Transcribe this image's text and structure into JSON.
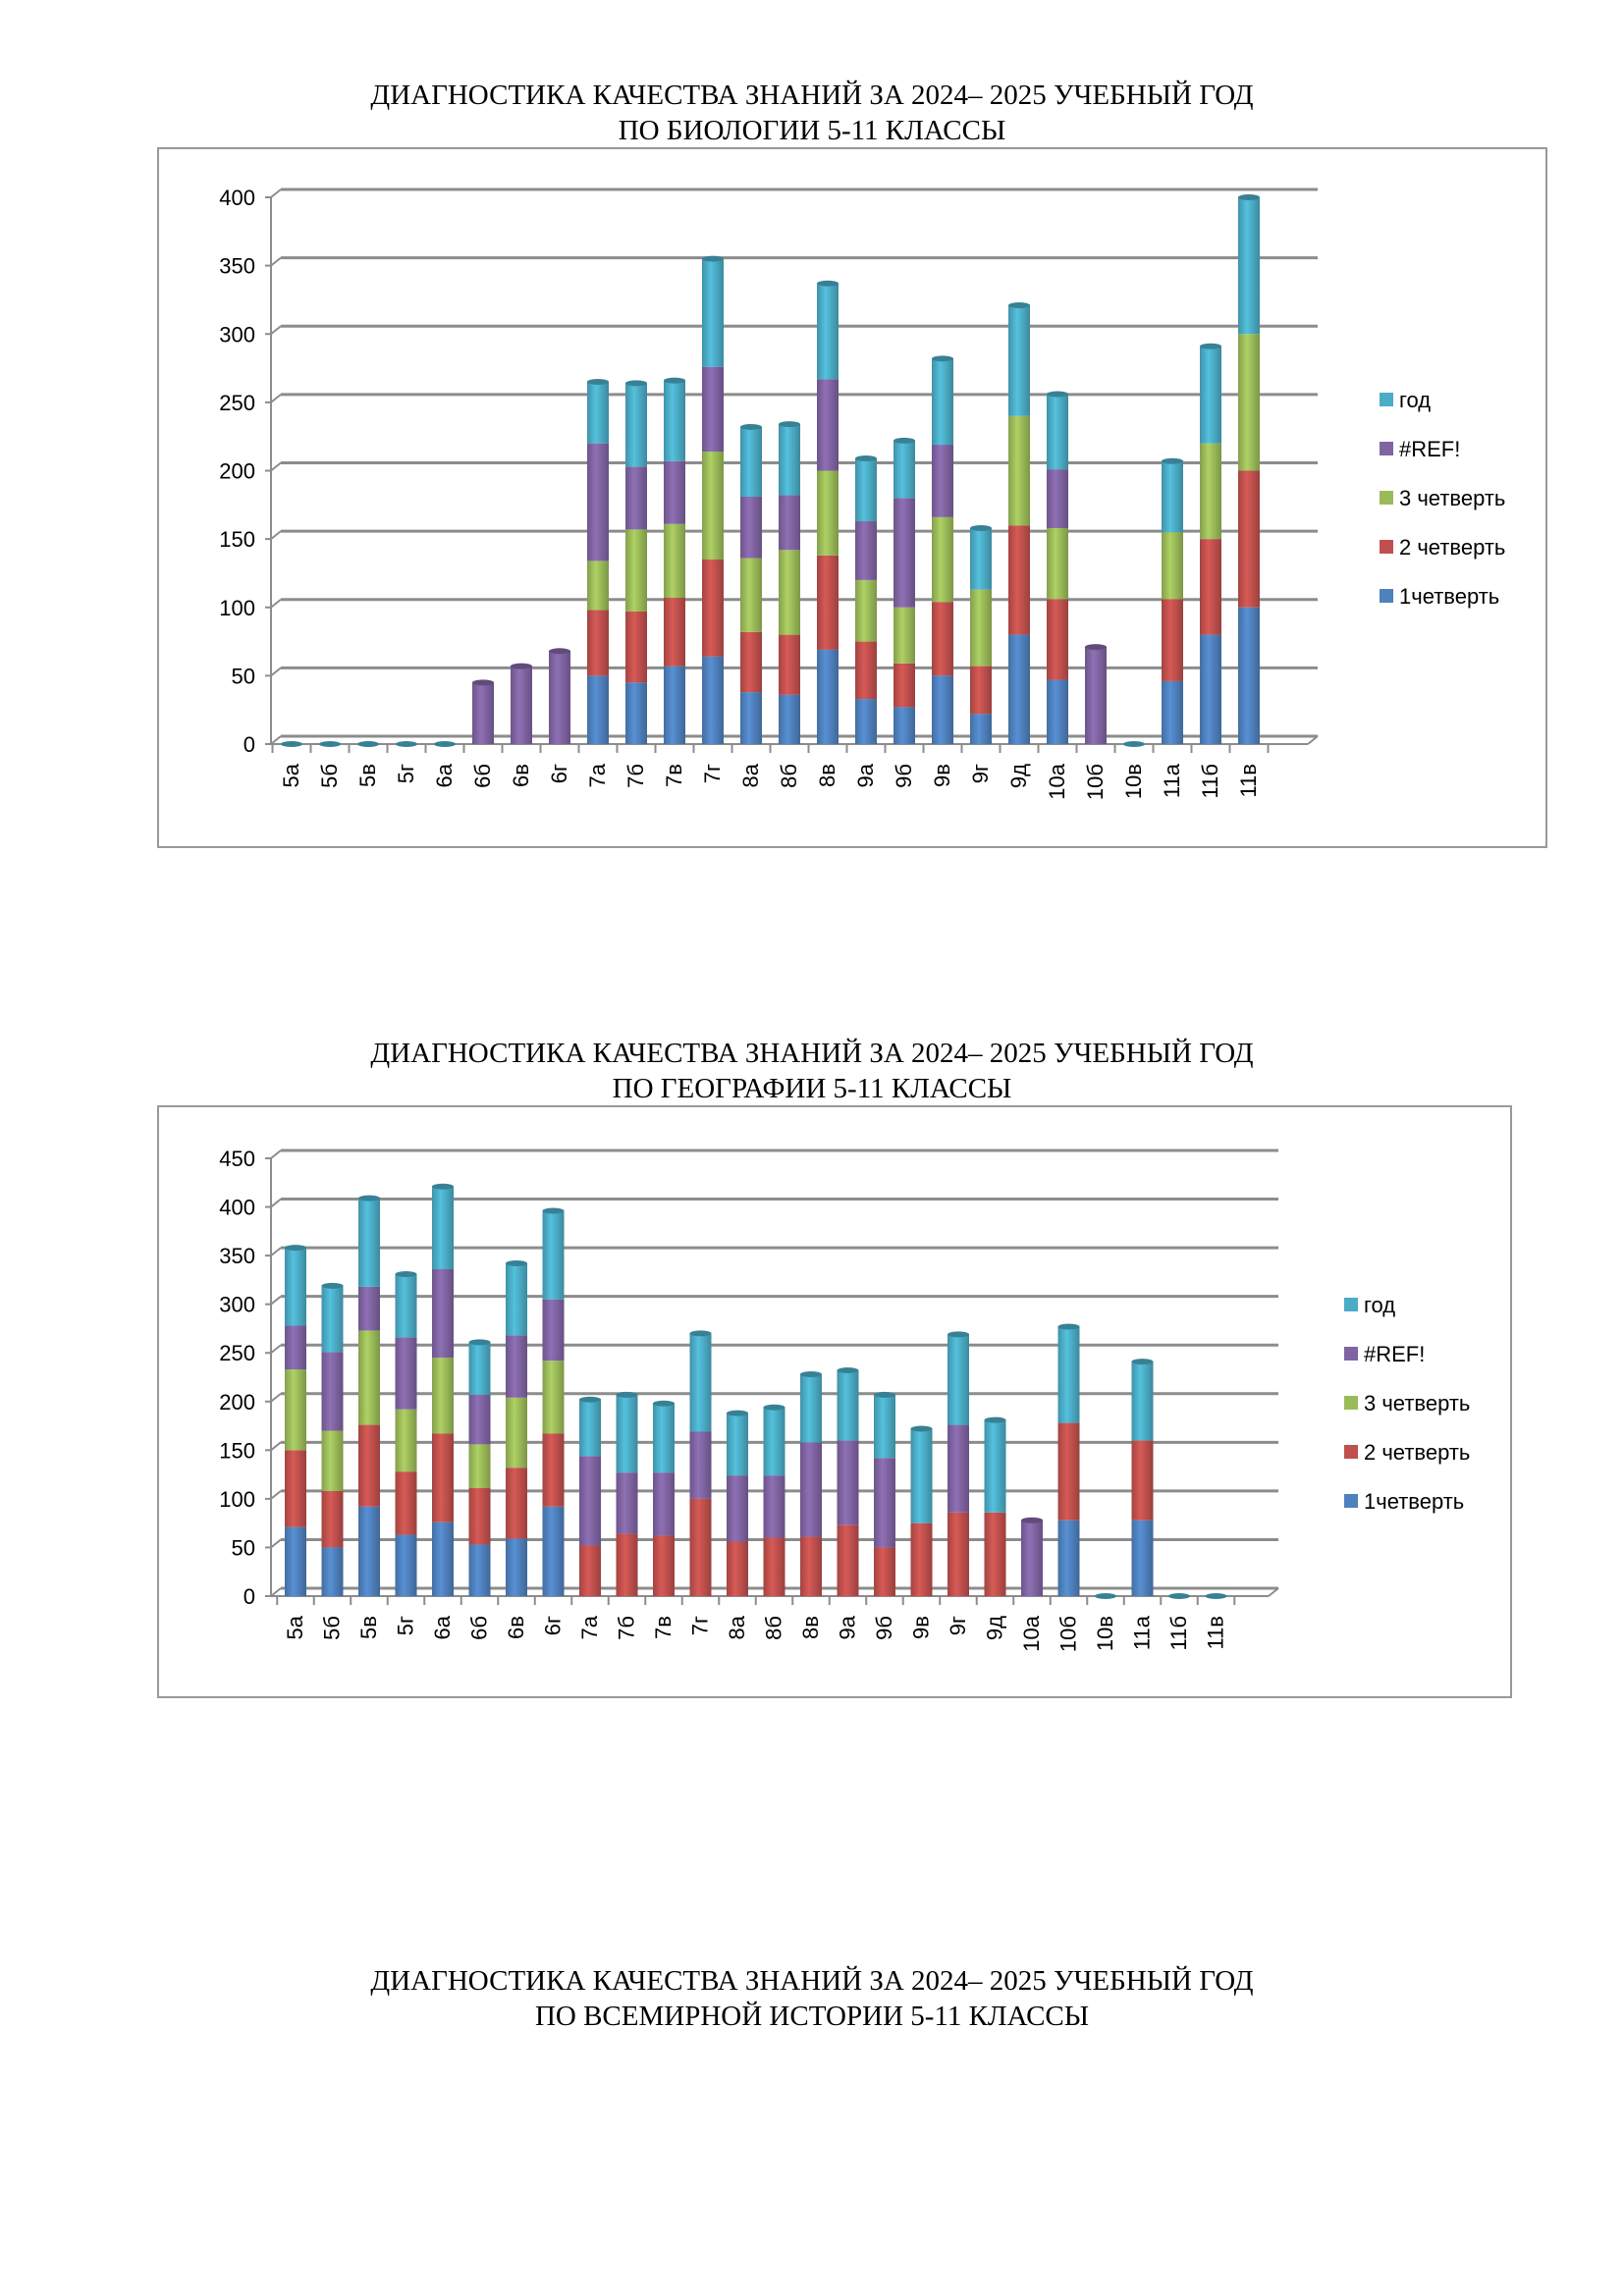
{
  "titles": [
    {
      "line1": "ДИАГНОСТИКА КАЧЕСТВА ЗНАНИЙ ЗА 2024– 2025 УЧЕБНЫЙ ГОД",
      "line2": "ПО БИОЛОГИИ  5-11 КЛАССЫ"
    },
    {
      "line1": "ДИАГНОСТИКА КАЧЕСТВА ЗНАНИЙ ЗА 2024– 2025 УЧЕБНЫЙ ГОД",
      "line2": "ПО ГЕОГРАФИИ  5-11 КЛАССЫ"
    },
    {
      "line1": "ДИАГНОСТИКА КАЧЕСТВА ЗНАНИЙ ЗА 2024– 2025 УЧЕБНЫЙ ГОД",
      "line2": "ПО ВСЕМИРНОЙ ИСТОРИИ  5-11 КЛАССЫ"
    }
  ],
  "chart_data": [
    {
      "type": "bar",
      "stacked": true,
      "title": "ДИАГНОСТИКА КАЧЕСТВА ЗНАНИЙ ЗА 2024– 2025 УЧЕБНЫЙ ГОД ПО БИОЛОГИИ 5-11 КЛАССЫ",
      "xlabel": "",
      "ylabel": "",
      "ylim": [
        0,
        400
      ],
      "yticks": [
        0,
        50,
        100,
        150,
        200,
        250,
        300,
        350,
        400
      ],
      "grid": true,
      "legend": "right",
      "categories": [
        "5а",
        "5б",
        "5в",
        "5г",
        "6а",
        "6б",
        "6в",
        "6г",
        "7а",
        "7б",
        "7в",
        "7г",
        "8а",
        "8б",
        "8в",
        "9а",
        "9б",
        "9в",
        "9г",
        "9д",
        "10а",
        "10б",
        "10в",
        "11а",
        "11б",
        "11в"
      ],
      "series": [
        {
          "name": "1четверть",
          "color": "#4f81bd",
          "values": [
            0,
            0,
            0,
            0,
            0,
            0,
            0,
            0,
            50,
            45,
            57,
            64,
            38,
            36,
            69,
            33,
            27,
            50,
            22,
            80,
            47,
            0,
            0,
            46,
            80,
            100
          ]
        },
        {
          "name": "2 четверть",
          "color": "#c0504d",
          "values": [
            0,
            0,
            0,
            0,
            0,
            0,
            0,
            0,
            48,
            52,
            50,
            71,
            44,
            44,
            69,
            42,
            32,
            54,
            35,
            80,
            59,
            0,
            0,
            60,
            70,
            100
          ]
        },
        {
          "name": "3 четверть",
          "color": "#9bbb59",
          "values": [
            0,
            0,
            0,
            0,
            0,
            0,
            0,
            0,
            36,
            60,
            54,
            79,
            54,
            62,
            62,
            45,
            41,
            62,
            56,
            80,
            52,
            0,
            0,
            49,
            70,
            100
          ]
        },
        {
          "name": "#REF!",
          "color": "#8064a2",
          "values": [
            0,
            0,
            0,
            0,
            0,
            45,
            57,
            68,
            86,
            46,
            46,
            62,
            45,
            40,
            67,
            43,
            80,
            53,
            0,
            0,
            43,
            71,
            0,
            0,
            0,
            0
          ]
        },
        {
          "name": "год",
          "color": "#4bacc6",
          "values": [
            0,
            0,
            0,
            0,
            0,
            0,
            0,
            0,
            45,
            61,
            59,
            79,
            51,
            52,
            70,
            46,
            42,
            63,
            45,
            81,
            55,
            0,
            0,
            52,
            71,
            100
          ]
        }
      ]
    },
    {
      "type": "bar",
      "stacked": true,
      "title": "ДИАГНОСТИКА КАЧЕСТВА ЗНАНИЙ ЗА 2024– 2025 УЧЕБНЫЙ ГОД ПО ГЕОГРАФИИ 5-11 КЛАССЫ",
      "xlabel": "",
      "ylabel": "",
      "ylim": [
        0,
        450
      ],
      "yticks": [
        0,
        50,
        100,
        150,
        200,
        250,
        300,
        350,
        400,
        450
      ],
      "grid": true,
      "legend": "right",
      "categories": [
        "5а",
        "5б",
        "5в",
        "5г",
        "6а",
        "6б",
        "6в",
        "6г",
        "7а",
        "7б",
        "7в",
        "7г",
        "8а",
        "8б",
        "8в",
        "9а",
        "9б",
        "9в",
        "9г",
        "9д",
        "10а",
        "10б",
        "10в",
        "11а",
        "11б",
        "11в"
      ],
      "series": [
        {
          "name": "1четверть",
          "color": "#4f81bd",
          "values": [
            71,
            50,
            92,
            63,
            76,
            53,
            59,
            92,
            0,
            0,
            0,
            0,
            0,
            0,
            0,
            0,
            0,
            0,
            0,
            0,
            0,
            78,
            0,
            78,
            0,
            0
          ]
        },
        {
          "name": "2 четверть",
          "color": "#c0504d",
          "values": [
            79,
            58,
            84,
            65,
            91,
            58,
            73,
            75,
            52,
            64,
            62,
            100,
            56,
            60,
            61,
            73,
            50,
            75,
            86,
            86,
            0,
            100,
            0,
            82,
            0,
            0
          ]
        },
        {
          "name": "3 четверть",
          "color": "#9bbb59",
          "values": [
            83,
            62,
            97,
            64,
            78,
            45,
            72,
            75,
            0,
            0,
            0,
            0,
            0,
            0,
            0,
            0,
            0,
            0,
            0,
            0,
            0,
            0,
            0,
            0,
            0,
            0
          ]
        },
        {
          "name": "#REF!",
          "color": "#8064a2",
          "values": [
            45,
            81,
            45,
            74,
            91,
            51,
            64,
            63,
            92,
            63,
            65,
            69,
            68,
            64,
            97,
            87,
            92,
            0,
            90,
            0,
            78,
            0,
            0,
            0,
            0,
            0
          ]
        },
        {
          "name": "год",
          "color": "#4bacc6",
          "values": [
            80,
            68,
            91,
            65,
            85,
            54,
            74,
            91,
            58,
            80,
            71,
            101,
            64,
            70,
            70,
            72,
            65,
            97,
            93,
            95,
            0,
            99,
            0,
            81,
            0,
            0
          ]
        }
      ]
    }
  ]
}
